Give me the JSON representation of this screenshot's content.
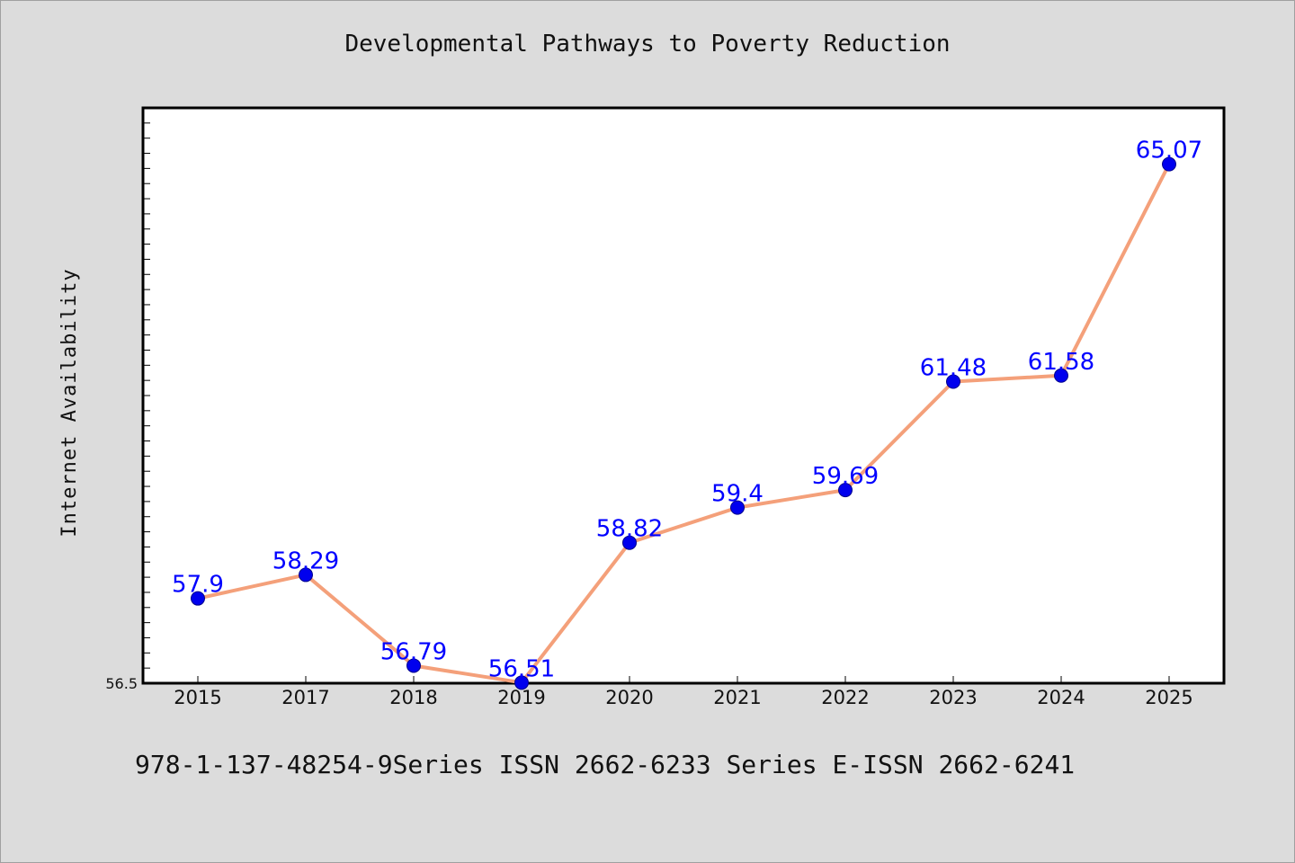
{
  "title": "Developmental Pathways to Poverty Reduction",
  "footer": "978-1-137-48254-9Series ISSN 2662-6233 Series E-ISSN 2662-6241",
  "chart_data": {
    "type": "line",
    "title": "Developmental Pathways to Poverty Reduction",
    "xlabel": "",
    "ylabel": "Internet Availability",
    "categories": [
      "2015",
      "2017",
      "2018",
      "2019",
      "2020",
      "2021",
      "2022",
      "2023",
      "2024",
      "2025"
    ],
    "series": [
      {
        "values": [
          57.9,
          58.29,
          56.79,
          56.51,
          58.82,
          59.4,
          59.69,
          61.48,
          61.58,
          65.07
        ],
        "data_labels": [
          "57.9",
          "58.29",
          "56.79",
          "56.51",
          "58.82",
          "59.4",
          "59.69",
          "61.48",
          "61.58",
          "65.07"
        ],
        "line_color": "#f4a07a",
        "marker_color": "#0000ee"
      }
    ],
    "y_tick_labels": [
      "56.5"
    ],
    "ylim": [
      56.5,
      66.0
    ],
    "grid": false,
    "legend": "none",
    "background": "#ffffff",
    "outer_background": "#dcdcdc"
  }
}
